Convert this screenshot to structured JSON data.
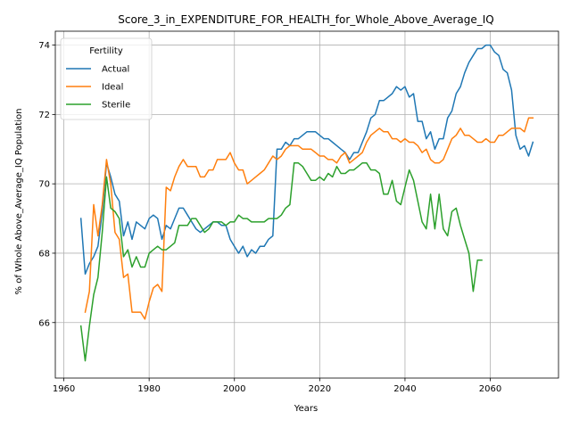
{
  "chart_data": {
    "type": "line",
    "title": "Score_3_in_EXPENDITURE_FOR_HEALTH_for_Whole_Above_Average_IQ",
    "xlabel": "Years",
    "ylabel": "% of Whole Above_Average_IQ Population",
    "xlim": [
      1958,
      2076
    ],
    "ylim": [
      64.4,
      74.4
    ],
    "xticks": [
      1960,
      1980,
      2000,
      2020,
      2040,
      2060
    ],
    "yticks": [
      66,
      68,
      70,
      72,
      74
    ],
    "grid": true,
    "legend": {
      "title": "Fertility",
      "placement": "top-left"
    },
    "series": [
      {
        "name": "Actual",
        "color": "#1f77b4",
        "x": [
          1964,
          1965,
          1966,
          1967,
          1968,
          1969,
          1970,
          1971,
          1972,
          1973,
          1974,
          1975,
          1976,
          1977,
          1978,
          1979,
          1980,
          1981,
          1982,
          1983,
          1984,
          1985,
          1986,
          1987,
          1988,
          1989,
          1990,
          1991,
          1992,
          1993,
          1994,
          1995,
          1996,
          1997,
          1998,
          1999,
          2000,
          2001,
          2002,
          2003,
          2004,
          2005,
          2006,
          2007,
          2008,
          2009,
          2010,
          2011,
          2012,
          2013,
          2014,
          2015,
          2016,
          2017,
          2018,
          2019,
          2020,
          2021,
          2022,
          2023,
          2024,
          2025,
          2026,
          2027,
          2028,
          2029,
          2030,
          2031,
          2032,
          2033,
          2034,
          2035,
          2036,
          2037,
          2038,
          2039,
          2040,
          2041,
          2042,
          2043,
          2044,
          2045,
          2046,
          2047,
          2048,
          2049,
          2050,
          2051,
          2052,
          2053,
          2054,
          2055,
          2056,
          2057,
          2058,
          2059,
          2060,
          2061,
          2062,
          2063,
          2064,
          2065,
          2066,
          2067,
          2068,
          2069,
          2070
        ],
        "values": [
          69.0,
          67.4,
          67.7,
          67.9,
          68.2,
          69.2,
          70.6,
          70.2,
          69.7,
          69.5,
          68.5,
          68.9,
          68.4,
          68.9,
          68.8,
          68.7,
          69.0,
          69.1,
          69.0,
          68.4,
          68.8,
          68.7,
          69.0,
          69.3,
          69.3,
          69.1,
          68.9,
          68.7,
          68.6,
          68.7,
          68.8,
          68.9,
          68.9,
          68.8,
          68.8,
          68.4,
          68.2,
          68.0,
          68.2,
          67.9,
          68.1,
          68.0,
          68.2,
          68.2,
          68.4,
          68.5,
          71.0,
          71.0,
          71.2,
          71.1,
          71.3,
          71.3,
          71.4,
          71.5,
          71.5,
          71.5,
          71.4,
          71.3,
          71.3,
          71.2,
          71.1,
          71.0,
          70.9,
          70.7,
          70.9,
          70.9,
          71.2,
          71.5,
          71.9,
          72.0,
          72.4,
          72.4,
          72.5,
          72.6,
          72.8,
          72.7,
          72.8,
          72.5,
          72.6,
          71.8,
          71.8,
          71.3,
          71.5,
          71.0,
          71.3,
          71.3,
          71.9,
          72.1,
          72.6,
          72.8,
          73.2,
          73.5,
          73.7,
          73.9,
          73.9,
          74.0,
          74.0,
          73.8,
          73.7,
          73.3,
          73.2,
          72.7,
          71.4,
          71.0,
          71.1,
          70.8,
          71.2
        ]
      },
      {
        "name": "Ideal",
        "color": "#ff7f0e",
        "x": [
          1965,
          1966,
          1967,
          1968,
          1969,
          1970,
          1971,
          1972,
          1973,
          1974,
          1975,
          1976,
          1977,
          1978,
          1979,
          1980,
          1981,
          1982,
          1983,
          1984,
          1985,
          1986,
          1987,
          1988,
          1989,
          1990,
          1991,
          1992,
          1993,
          1994,
          1995,
          1996,
          1997,
          1998,
          1999,
          2000,
          2001,
          2002,
          2003,
          2004,
          2005,
          2006,
          2007,
          2008,
          2009,
          2010,
          2011,
          2012,
          2013,
          2014,
          2015,
          2016,
          2017,
          2018,
          2019,
          2020,
          2021,
          2022,
          2023,
          2024,
          2025,
          2026,
          2027,
          2028,
          2029,
          2030,
          2031,
          2032,
          2033,
          2034,
          2035,
          2036,
          2037,
          2038,
          2039,
          2040,
          2041,
          2042,
          2043,
          2044,
          2045,
          2046,
          2047,
          2048,
          2049,
          2050,
          2051,
          2052,
          2053,
          2054,
          2055,
          2056,
          2057,
          2058,
          2059,
          2060,
          2061,
          2062,
          2063,
          2064,
          2065,
          2066,
          2067,
          2068,
          2069,
          2070
        ],
        "values": [
          66.3,
          66.9,
          69.4,
          68.5,
          69.4,
          70.7,
          70.0,
          68.6,
          68.4,
          67.3,
          67.4,
          66.3,
          66.3,
          66.3,
          66.1,
          66.6,
          67.0,
          67.1,
          66.9,
          69.9,
          69.8,
          70.2,
          70.5,
          70.7,
          70.5,
          70.5,
          70.5,
          70.2,
          70.2,
          70.4,
          70.4,
          70.7,
          70.7,
          70.7,
          70.9,
          70.6,
          70.4,
          70.4,
          70.0,
          70.1,
          70.2,
          70.3,
          70.4,
          70.6,
          70.8,
          70.7,
          70.8,
          71.0,
          71.1,
          71.1,
          71.1,
          71.0,
          71.0,
          71.0,
          70.9,
          70.8,
          70.8,
          70.7,
          70.7,
          70.6,
          70.8,
          70.9,
          70.6,
          70.7,
          70.8,
          70.9,
          71.2,
          71.4,
          71.5,
          71.6,
          71.5,
          71.5,
          71.3,
          71.3,
          71.2,
          71.3,
          71.2,
          71.2,
          71.1,
          70.9,
          71.0,
          70.7,
          70.6,
          70.6,
          70.7,
          71.0,
          71.3,
          71.4,
          71.6,
          71.4,
          71.4,
          71.3,
          71.2,
          71.2,
          71.3,
          71.2,
          71.2,
          71.4,
          71.4,
          71.5,
          71.6,
          71.6,
          71.6,
          71.5,
          71.9,
          71.9
        ]
      },
      {
        "name": "Sterile",
        "color": "#2ca02c",
        "x": [
          1964,
          1965,
          1966,
          1967,
          1968,
          1969,
          1970,
          1971,
          1972,
          1973,
          1974,
          1975,
          1976,
          1977,
          1978,
          1979,
          1980,
          1981,
          1982,
          1983,
          1984,
          1985,
          1986,
          1987,
          1988,
          1989,
          1990,
          1991,
          1992,
          1993,
          1994,
          1995,
          1996,
          1997,
          1998,
          1999,
          2000,
          2001,
          2002,
          2003,
          2004,
          2005,
          2006,
          2007,
          2008,
          2009,
          2010,
          2011,
          2012,
          2013,
          2014,
          2015,
          2016,
          2017,
          2018,
          2019,
          2020,
          2021,
          2022,
          2023,
          2024,
          2025,
          2026,
          2027,
          2028,
          2029,
          2030,
          2031,
          2032,
          2033,
          2034,
          2035,
          2036,
          2037,
          2038,
          2039,
          2040,
          2041,
          2042,
          2043,
          2044,
          2045,
          2046,
          2047,
          2048,
          2049,
          2050,
          2051,
          2052,
          2053,
          2054,
          2055,
          2056,
          2057,
          2058
        ],
        "values": [
          65.9,
          64.9,
          65.9,
          66.8,
          67.3,
          68.6,
          70.2,
          69.3,
          69.2,
          69.0,
          67.9,
          68.1,
          67.6,
          67.9,
          67.6,
          67.6,
          68.0,
          68.1,
          68.2,
          68.1,
          68.1,
          68.2,
          68.3,
          68.8,
          68.8,
          68.8,
          69.0,
          69.0,
          68.8,
          68.6,
          68.7,
          68.9,
          68.9,
          68.9,
          68.8,
          68.9,
          68.9,
          69.1,
          69.0,
          69.0,
          68.9,
          68.9,
          68.9,
          68.9,
          69.0,
          69.0,
          69.0,
          69.1,
          69.3,
          69.4,
          70.6,
          70.6,
          70.5,
          70.3,
          70.1,
          70.1,
          70.2,
          70.1,
          70.3,
          70.2,
          70.5,
          70.3,
          70.3,
          70.4,
          70.4,
          70.5,
          70.6,
          70.6,
          70.4,
          70.4,
          70.3,
          69.7,
          69.7,
          70.1,
          69.5,
          69.4,
          69.9,
          70.4,
          70.1,
          69.5,
          68.9,
          68.7,
          69.7,
          68.7,
          69.7,
          68.7,
          68.5,
          69.2,
          69.3,
          68.8,
          68.4,
          68.0,
          66.9,
          67.8,
          67.8
        ]
      }
    ]
  }
}
